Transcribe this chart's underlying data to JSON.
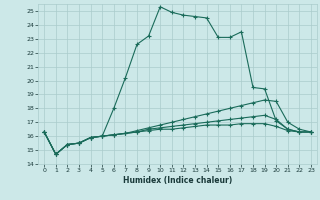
{
  "xlabel": "Humidex (Indice chaleur)",
  "background_color": "#cce8e8",
  "grid_color": "#aacccc",
  "line_color": "#1a6b5a",
  "xlim": [
    -0.5,
    23.5
  ],
  "ylim": [
    14,
    25.5
  ],
  "xticks": [
    0,
    1,
    2,
    3,
    4,
    5,
    6,
    7,
    8,
    9,
    10,
    11,
    12,
    13,
    14,
    15,
    16,
    17,
    18,
    19,
    20,
    21,
    22,
    23
  ],
  "yticks": [
    14,
    15,
    16,
    17,
    18,
    19,
    20,
    21,
    22,
    23,
    24,
    25
  ],
  "series": [
    [
      16.3,
      14.7,
      15.4,
      15.5,
      15.9,
      16.0,
      18.0,
      20.2,
      22.6,
      23.2,
      25.3,
      24.9,
      24.7,
      24.6,
      24.5,
      23.1,
      23.1,
      23.5,
      19.5,
      19.4,
      17.1,
      16.5,
      16.3,
      16.3
    ],
    [
      16.3,
      14.7,
      15.4,
      15.5,
      15.9,
      16.0,
      16.1,
      16.2,
      16.4,
      16.6,
      16.8,
      17.0,
      17.2,
      17.4,
      17.6,
      17.8,
      18.0,
      18.2,
      18.4,
      18.6,
      18.5,
      17.0,
      16.5,
      16.3
    ],
    [
      16.3,
      14.7,
      15.4,
      15.5,
      15.9,
      16.0,
      16.1,
      16.2,
      16.3,
      16.5,
      16.6,
      16.7,
      16.8,
      16.9,
      17.0,
      17.1,
      17.2,
      17.3,
      17.4,
      17.5,
      17.2,
      16.5,
      16.3,
      16.3
    ],
    [
      16.3,
      14.7,
      15.4,
      15.5,
      15.9,
      16.0,
      16.1,
      16.2,
      16.3,
      16.4,
      16.5,
      16.5,
      16.6,
      16.7,
      16.8,
      16.8,
      16.8,
      16.9,
      16.9,
      16.9,
      16.7,
      16.4,
      16.3,
      16.3
    ]
  ]
}
